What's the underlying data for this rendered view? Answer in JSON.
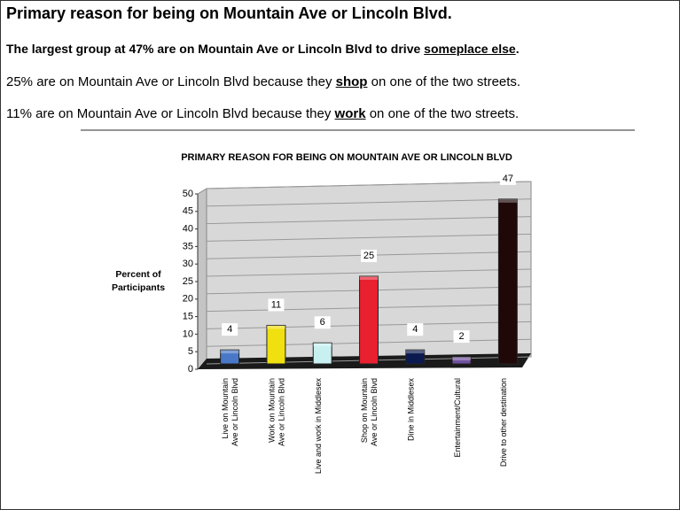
{
  "header": {
    "title": "Primary reason for being on Mountain Ave or Lincoln Blvd."
  },
  "paragraphs": [
    [
      {
        "text": "The largest group at "
      },
      {
        "text": "47%",
        "bold": true
      },
      {
        "text": " are on Mountain Ave or Lincoln Blvd to drive "
      },
      {
        "text": "someplace else",
        "underline": true
      },
      {
        "text": "."
      }
    ],
    [
      {
        "text": "25% are on Mountain Ave or Lincoln Blvd because they "
      },
      {
        "text": "shop",
        "bold": true,
        "underline": true
      },
      {
        "text": " on one of the two streets."
      }
    ],
    [
      {
        "text": "11% are on Mountain Ave or Lincoln Blvd because they "
      },
      {
        "text": "work",
        "bold": true,
        "underline": true
      },
      {
        "text": " on one of the two streets."
      }
    ]
  ],
  "chart_data": {
    "type": "bar",
    "title": "PRIMARY REASON FOR BEING ON MOUNTAIN AVE OR LINCOLN BLVD",
    "y_label": [
      "Percent of",
      "Participants"
    ],
    "categories": [
      "Live on Mountain Ave or Lincoln Blvd",
      "Work on Mountain Ave or Lincoln Blvd",
      "Live and work in Middlesex",
      "Shop on Mountain Ave or Lincoln Blvd",
      "Dine in Middlesex",
      "Entertainment/Cultural",
      "Drive to other destination"
    ],
    "values": [
      4,
      11,
      6,
      25,
      4,
      2,
      47
    ],
    "colors": [
      "#4a78c8",
      "#f0e010",
      "#c8f0f0",
      "#e82030",
      "#0a1a50",
      "#7050a0",
      "#200808"
    ],
    "ylim": [
      0,
      50
    ],
    "yticks": [
      0,
      5,
      10,
      15,
      20,
      25,
      30,
      35,
      40,
      45,
      50
    ],
    "grid": true
  }
}
